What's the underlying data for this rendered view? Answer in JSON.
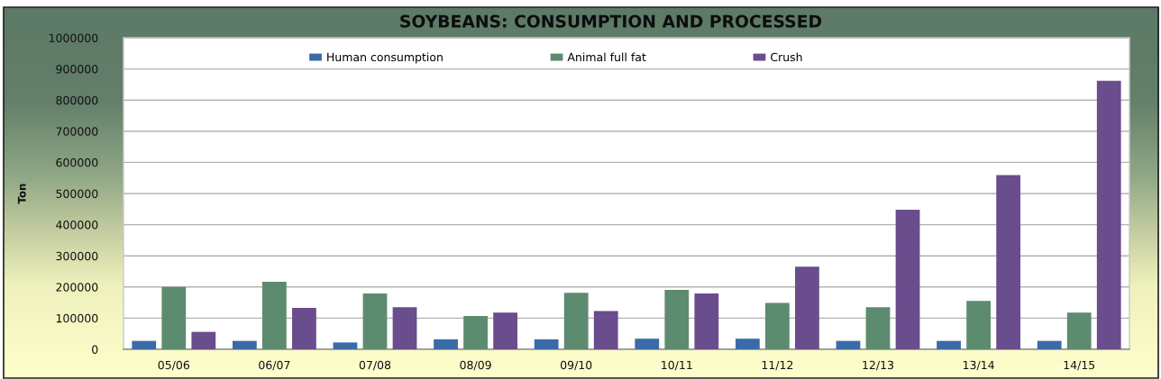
{
  "chart_data": {
    "type": "bar",
    "title": "SOYBEANS: CONSUMPTION AND PROCESSED",
    "ylabel": "Ton",
    "categories": [
      "05/06",
      "06/07",
      "07/08",
      "08/09",
      "09/10",
      "10/11",
      "11/12",
      "12/13",
      "13/14",
      "14/15"
    ],
    "series": [
      {
        "name": "Human consumption",
        "color": "#3b6aa8",
        "values": [
          27000,
          27000,
          22000,
          32000,
          32000,
          34000,
          34000,
          27000,
          27000,
          27000
        ]
      },
      {
        "name": "Animal full fat",
        "color": "#5d8b6f",
        "values": [
          200000,
          217000,
          179000,
          107000,
          181000,
          191000,
          149000,
          135000,
          155000,
          118000
        ]
      },
      {
        "name": "Crush",
        "color": "#6a4d8c",
        "values": [
          56000,
          133000,
          135000,
          118000,
          123000,
          179000,
          265000,
          448000,
          559000,
          862000
        ]
      }
    ],
    "ylim": [
      0,
      1000000
    ],
    "yticks": [
      0,
      100000,
      200000,
      300000,
      400000,
      500000,
      600000,
      700000,
      800000,
      900000,
      1000000
    ],
    "grid": "y",
    "legend": "top"
  }
}
